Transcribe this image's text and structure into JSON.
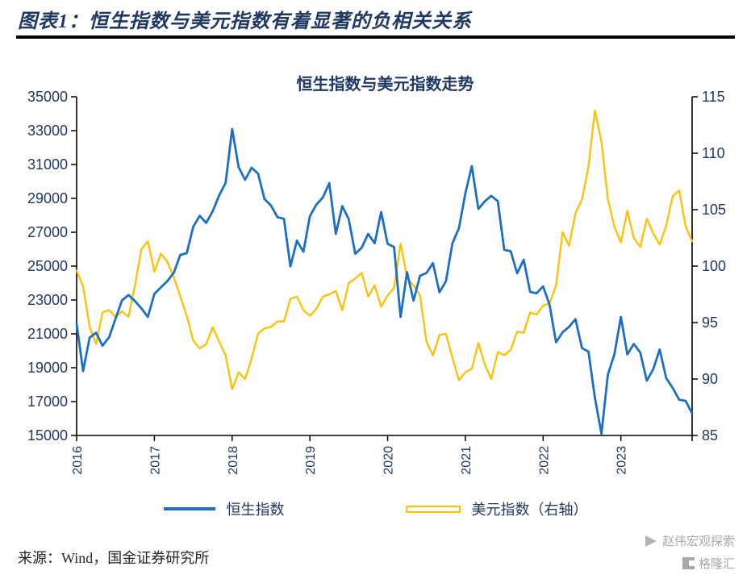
{
  "header": {
    "title": "图表1：恒生指数与美元指数有着显著的负相关关系"
  },
  "footer": {
    "source": "来源：Wind，国金证券研究所"
  },
  "watermark": {
    "line1": "赵伟宏观探索",
    "line2": "格隆汇"
  },
  "chart_data": {
    "type": "line",
    "title": "恒生指数与美元指数走势",
    "x_unit": "month",
    "x_start": "2016-01",
    "x_end": "2023-12",
    "x_tick_labels": [
      "2016",
      "2017",
      "2018",
      "2019",
      "2020",
      "2021",
      "2022",
      "2023"
    ],
    "left_axis": {
      "min": 15000,
      "max": 35000,
      "step": 2000,
      "ticks": [
        35000,
        33000,
        31000,
        29000,
        27000,
        25000,
        23000,
        21000,
        19000,
        17000,
        15000
      ]
    },
    "right_axis": {
      "min": 85,
      "max": 115,
      "step": 5,
      "ticks": [
        115,
        110,
        105,
        100,
        95,
        90,
        85
      ]
    },
    "label_color": "#1F3864",
    "axis_color": "#000000",
    "legend_position": "bottom",
    "grid": false,
    "series": [
      {
        "name": "恒生指数",
        "axis": "left",
        "color": "#1C6FC2",
        "values": [
          21600,
          18800,
          20777,
          21067,
          20300,
          20794,
          21891,
          22977,
          23297,
          22935,
          22506,
          22000,
          23361,
          23741,
          24112,
          24615,
          25661,
          25765,
          27324,
          27970,
          27554,
          28246,
          29177,
          29919,
          33100,
          30845,
          30093,
          30808,
          30469,
          28955,
          28583,
          27889,
          27789,
          24980,
          26507,
          25846,
          27942,
          28633,
          29051,
          29900,
          26901,
          28543,
          27778,
          25725,
          26092,
          26907,
          26346,
          28189,
          26313,
          26130,
          22000,
          24644,
          22961,
          24427,
          24595,
          25177,
          23459,
          24107,
          26341,
          27231,
          29300,
          30900,
          28378,
          28825,
          29152,
          28828,
          25961,
          25879,
          24576,
          25377,
          23476,
          23398,
          23802,
          22713,
          20500,
          21089,
          21415,
          21860,
          20157,
          19954,
          17223,
          15100,
          18597,
          19781,
          22000,
          19786,
          20400,
          19895,
          18234,
          18916,
          20078,
          18382,
          17810,
          17112,
          17042,
          16300
        ]
      },
      {
        "name": "美元指数（右轴）",
        "axis": "right",
        "color": "#FFC000",
        "values": [
          99.6,
          98.2,
          94.6,
          93.1,
          95.9,
          96.1,
          95.5,
          96.0,
          95.5,
          98.3,
          101.5,
          102.2,
          99.5,
          101.1,
          100.4,
          99.0,
          97.3,
          95.6,
          93.4,
          92.7,
          93.1,
          94.6,
          93.3,
          92.1,
          89.1,
          90.6,
          90.0,
          91.8,
          94.0,
          94.5,
          94.6,
          95.1,
          95.1,
          97.1,
          97.3,
          96.1,
          95.6,
          96.2,
          97.3,
          97.5,
          97.8,
          96.1,
          98.5,
          98.9,
          99.4,
          97.3,
          98.3,
          96.4,
          97.4,
          98.1,
          102.0,
          99.0,
          98.3,
          97.4,
          93.3,
          92.1,
          93.9,
          94.0,
          91.9,
          89.9,
          90.6,
          90.9,
          93.2,
          91.3,
          90.0,
          92.4,
          92.1,
          92.6,
          94.2,
          94.1,
          95.9,
          95.7,
          96.5,
          96.7,
          98.3,
          103.0,
          101.8,
          104.7,
          105.9,
          108.8,
          113.8,
          111.0,
          105.9,
          103.5,
          102.1,
          104.9,
          102.5,
          101.7,
          104.2,
          102.9,
          101.9,
          103.6,
          106.2,
          106.7,
          103.5,
          102.2
        ]
      }
    ]
  }
}
